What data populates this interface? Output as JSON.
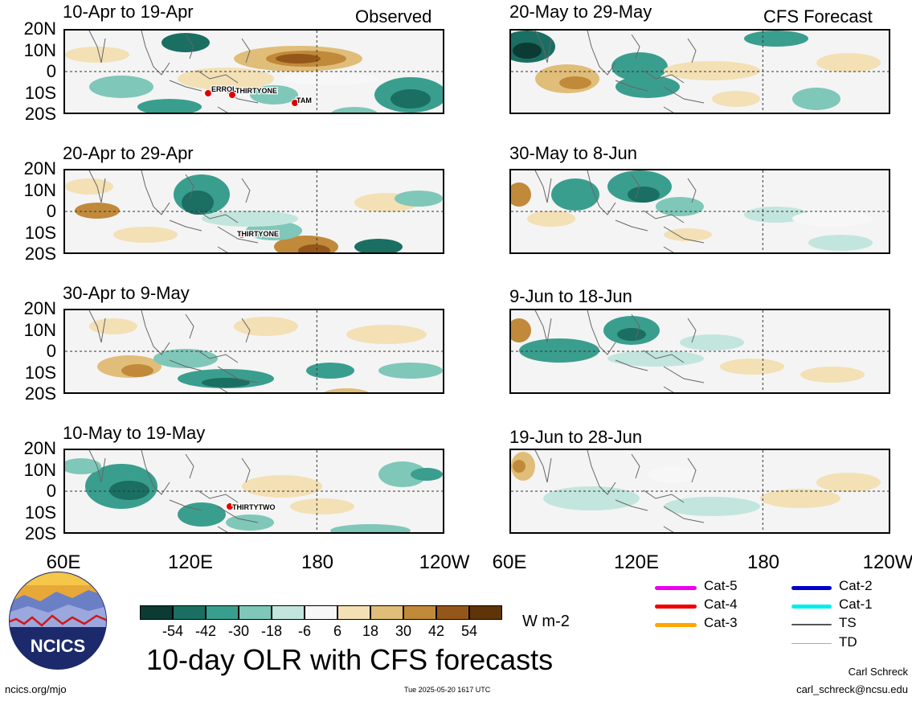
{
  "left_header": "Observed",
  "right_header": "CFS Forecast",
  "panels_left": [
    {
      "title": "10-Apr to 19-Apr"
    },
    {
      "title": "20-Apr to 29-Apr"
    },
    {
      "title": "30-Apr to 9-May"
    },
    {
      "title": "10-May to 19-May"
    }
  ],
  "panels_right": [
    {
      "title": "20-May to 29-May"
    },
    {
      "title": "30-May to 8-Jun"
    },
    {
      "title": "9-Jun to 18-Jun"
    },
    {
      "title": "19-Jun to 28-Jun"
    }
  ],
  "lat_labels": [
    "20N",
    "10N",
    "0",
    "10S",
    "20S"
  ],
  "lon_labels": [
    "60E",
    "120E",
    "180",
    "120W"
  ],
  "storm_labels": {
    "p1": [
      "ERROL",
      "THIRTYONE",
      "TAM"
    ],
    "p2": [
      "THIRTYONE"
    ],
    "p4": [
      "THIRTYTWO"
    ]
  },
  "colorbar": {
    "ticks": [
      "-54",
      "-42",
      "-30",
      "-18",
      "-6",
      "6",
      "18",
      "30",
      "42",
      "54"
    ],
    "colors": [
      "#0b3b33",
      "#1a6e62",
      "#3a9e8e",
      "#7fc7b9",
      "#c2e6dd",
      "#f7f7f7",
      "#f3e0b5",
      "#e0bd78",
      "#c08a3a",
      "#95561a",
      "#5e3408"
    ],
    "unit": "W m-2"
  },
  "chart_title": "10-day OLR with CFS forecasts",
  "legend": [
    {
      "label": "Cat-5",
      "color": "#ee00ee"
    },
    {
      "label": "Cat-4",
      "color": "#ee0000"
    },
    {
      "label": "Cat-3",
      "color": "#ffa500"
    },
    {
      "label": "Cat-2",
      "color": "#0000cc"
    },
    {
      "label": "Cat-1",
      "color": "#00eeee"
    },
    {
      "label": "TS",
      "color": "#555555"
    },
    {
      "label": "TD",
      "color": "#aaaaaa"
    }
  ],
  "logo_text": "NCICS",
  "footer": {
    "left": "ncics.org/mjo",
    "center": "Tue 2025-05-20 1617 UTC",
    "author": "Carl Schreck",
    "email": "carl_schreck@ncsu.edu"
  },
  "chart_data": {
    "type": "heatmap",
    "title": "10-day OLR with CFS forecasts",
    "xlabel": "",
    "ylabel": "",
    "x_ticks": [
      "60E",
      "120E",
      "180",
      "120W"
    ],
    "y_ticks": [
      "20N",
      "10N",
      "0",
      "10S",
      "20S"
    ],
    "xlim": [
      60,
      240
    ],
    "ylim": [
      -20,
      20
    ],
    "color_levels": [
      -54,
      -42,
      -30,
      -18,
      -6,
      6,
      18,
      30,
      42,
      54
    ],
    "unit": "W m-2",
    "panels": [
      "10-Apr to 19-Apr",
      "20-Apr to 29-Apr",
      "30-Apr to 9-May",
      "10-May to 19-May",
      "20-May to 29-May",
      "30-May to 8-Jun",
      "9-Jun to 18-Jun",
      "19-Jun to 28-Jun"
    ]
  }
}
